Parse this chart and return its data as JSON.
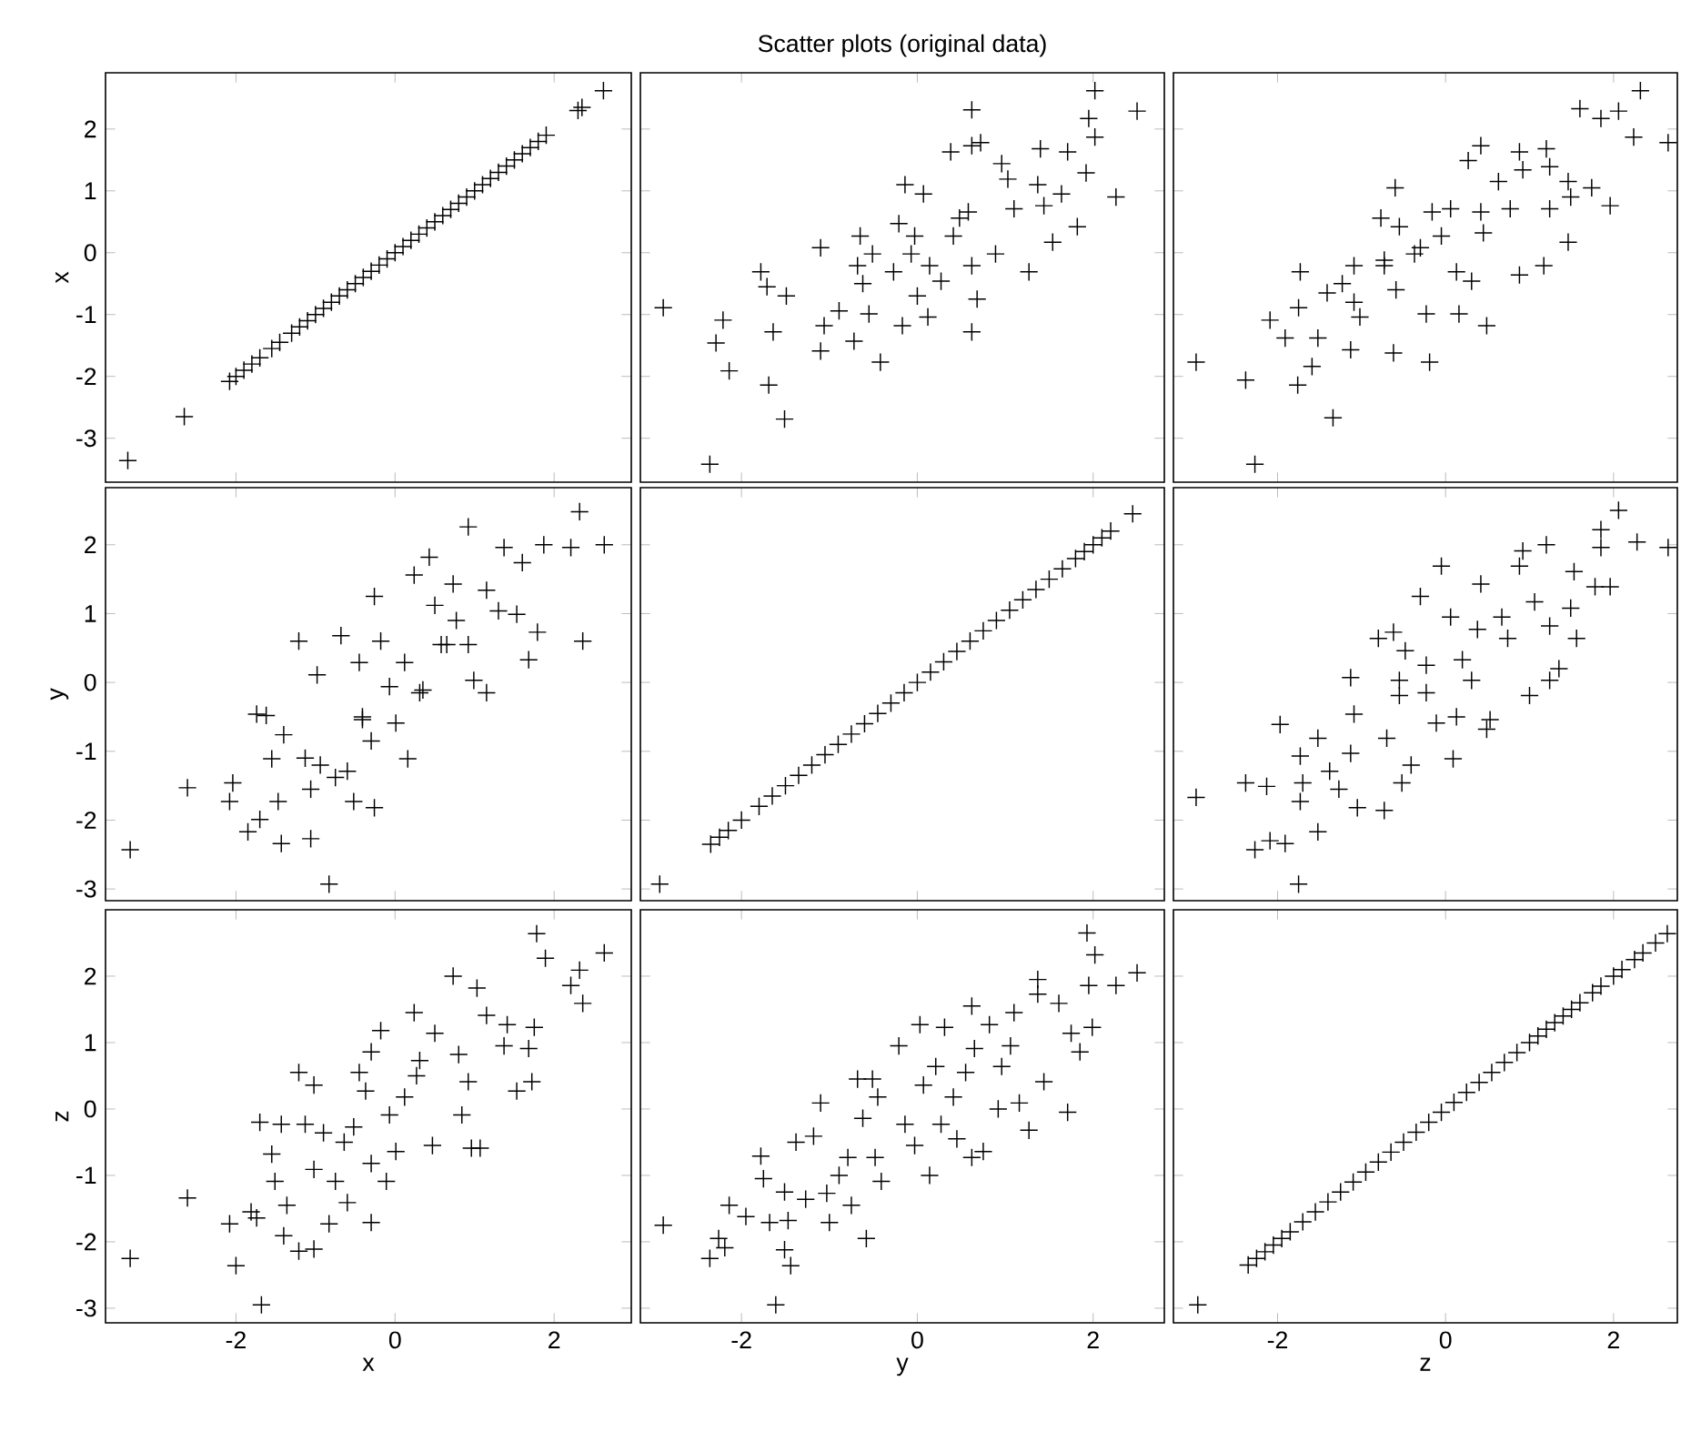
{
  "chart_data": [
    {
      "type": "scatter",
      "marker": "cross",
      "color": "#000000",
      "ylabel": "x",
      "tick_labels": "y",
      "xlim": [
        -3.64,
        2.97
      ],
      "ylim": [
        -3.71,
        2.91
      ],
      "xticks": [
        -2,
        0,
        2
      ],
      "yticks": [
        -3,
        -2,
        -1,
        0,
        1,
        2
      ],
      "x": [
        -3.36,
        -2.65,
        -2.08,
        -2.0,
        -1.9,
        -1.8,
        -1.7,
        -1.55,
        -1.45,
        -1.3,
        -1.2,
        -1.1,
        -1.0,
        -0.9,
        -0.8,
        -0.7,
        -0.6,
        -0.5,
        -0.4,
        -0.3,
        -0.2,
        -0.1,
        0.0,
        0.1,
        0.2,
        0.3,
        0.4,
        0.5,
        0.6,
        0.7,
        0.8,
        0.9,
        1.0,
        1.1,
        1.2,
        1.3,
        1.4,
        1.5,
        1.6,
        1.7,
        1.8,
        1.9,
        2.3,
        2.35,
        2.62
      ],
      "values": [
        -3.36,
        -2.65,
        -2.08,
        -2.0,
        -1.9,
        -1.8,
        -1.7,
        -1.55,
        -1.45,
        -1.3,
        -1.2,
        -1.1,
        -1.0,
        -0.9,
        -0.8,
        -0.7,
        -0.6,
        -0.5,
        -0.4,
        -0.3,
        -0.2,
        -0.1,
        0.0,
        0.1,
        0.2,
        0.3,
        0.4,
        0.5,
        0.6,
        0.7,
        0.8,
        0.9,
        1.0,
        1.1,
        1.2,
        1.3,
        1.4,
        1.5,
        1.6,
        1.7,
        1.8,
        1.9,
        2.3,
        2.35,
        2.62
      ]
    },
    {
      "type": "scatter",
      "marker": "cross",
      "color": "#000000",
      "title": "Scatter plots (original data)",
      "tick_labels": false,
      "xlim": [
        -3.15,
        2.81
      ],
      "ylim": [
        -3.71,
        2.91
      ],
      "xticks": [
        -2,
        0,
        2
      ],
      "yticks": [
        -3,
        -2,
        -1,
        0,
        1,
        2
      ],
      "x": [
        -2.89,
        -2.36,
        -1.51,
        -2.14,
        -1.69,
        -2.29,
        -2.21,
        -1.78,
        -1.71,
        -1.49,
        -1.64,
        -1.1,
        -1.1,
        -0.72,
        -0.42,
        -1.06,
        -0.89,
        -0.65,
        -0.62,
        -0.51,
        -0.55,
        -0.17,
        -0.14,
        -0.21,
        -0.03,
        0.07,
        0.14,
        0.12,
        0.27,
        0.0,
        0.38,
        0.62,
        0.62,
        0.72,
        0.58,
        0.62,
        0.68,
        0.62,
        0.48,
        0.96,
        1.03,
        0.89,
        1.1,
        1.27,
        1.37,
        1.44,
        1.4,
        1.54,
        1.64,
        1.71,
        1.82,
        1.92,
        1.95,
        2.02,
        2.02,
        2.26,
        2.5,
        -0.68,
        -0.27,
        -0.07,
        0.41
      ],
      "values": [
        -0.89,
        -3.42,
        -2.69,
        -1.91,
        -2.14,
        -1.46,
        -1.09,
        -0.31,
        -0.55,
        -0.7,
        -1.28,
        0.08,
        -1.59,
        -1.43,
        -1.77,
        -1.18,
        -0.94,
        0.27,
        -0.5,
        -0.02,
        -0.99,
        -1.18,
        1.1,
        0.47,
        0.27,
        0.95,
        -0.21,
        -1.04,
        -0.46,
        -0.7,
        1.63,
        2.31,
        1.73,
        1.78,
        0.66,
        -0.21,
        -0.75,
        -1.28,
        0.56,
        1.44,
        1.19,
        -0.02,
        0.71,
        -0.31,
        1.1,
        0.76,
        1.68,
        0.17,
        0.95,
        1.63,
        0.42,
        1.29,
        2.17,
        1.87,
        2.62,
        0.9,
        2.29,
        -0.21,
        -0.31,
        -0.02,
        0.27
      ]
    },
    {
      "type": "scatter",
      "marker": "cross",
      "color": "#000000",
      "tick_labels": false,
      "xlim": [
        -3.24,
        2.76
      ],
      "ylim": [
        -3.71,
        2.91
      ],
      "xticks": [
        -2,
        0,
        2
      ],
      "yticks": [
        -3,
        -2,
        -1,
        0,
        1,
        2
      ],
      "x": [
        -2.97,
        -2.38,
        -2.27,
        -2.09,
        -1.91,
        -1.75,
        -1.73,
        -1.76,
        -1.59,
        -1.34,
        -1.52,
        -1.41,
        -1.23,
        -1.13,
        -1.09,
        -1.02,
        -1.09,
        -0.73,
        -0.62,
        -0.6,
        -0.59,
        -0.55,
        -0.3,
        -0.23,
        -0.19,
        -0.16,
        0.06,
        0.13,
        0.16,
        0.27,
        0.42,
        0.42,
        0.45,
        0.49,
        0.31,
        0.63,
        0.77,
        0.88,
        0.92,
        0.88,
        1.17,
        1.2,
        1.24,
        1.24,
        1.46,
        1.46,
        1.49,
        1.74,
        1.96,
        1.6,
        1.85,
        2.06,
        2.24,
        2.32,
        2.65,
        -0.77,
        -0.37,
        -0.05,
        -0.73
      ],
      "values": [
        -1.77,
        -2.06,
        -3.42,
        -1.09,
        -1.38,
        -0.89,
        -0.31,
        -2.14,
        -1.84,
        -2.67,
        -1.38,
        -0.65,
        -0.5,
        -1.57,
        -0.8,
        -1.04,
        -0.21,
        -0.21,
        -1.62,
        1.05,
        -0.6,
        0.42,
        0.08,
        -0.99,
        -1.77,
        0.66,
        0.71,
        -0.31,
        -0.99,
        1.49,
        1.73,
        0.66,
        0.32,
        -1.18,
        -0.46,
        1.15,
        0.71,
        1.63,
        1.34,
        -0.36,
        -0.21,
        1.68,
        0.71,
        1.39,
        1.15,
        0.17,
        0.9,
        1.05,
        0.76,
        2.33,
        2.17,
        2.29,
        1.87,
        2.62,
        1.78,
        0.56,
        -0.02,
        0.27,
        -0.12
      ]
    },
    {
      "type": "scatter",
      "marker": "cross",
      "color": "#000000",
      "ylabel": "y",
      "tick_labels": "y",
      "xlim": [
        -3.64,
        2.97
      ],
      "ylim": [
        -3.17,
        2.83
      ],
      "xticks": [
        -2,
        0,
        2
      ],
      "yticks": [
        -3,
        -2,
        -1,
        0,
        1,
        2
      ],
      "x": [
        -3.33,
        -2.61,
        -2.04,
        -2.08,
        -1.85,
        -1.7,
        -1.43,
        -1.06,
        -0.83,
        -1.47,
        -1.06,
        -1.55,
        -1.74,
        -1.62,
        -1.4,
        -1.21,
        -1.13,
        -0.98,
        -0.94,
        -0.75,
        -0.68,
        -0.6,
        -0.52,
        -0.26,
        -0.45,
        -0.41,
        -0.3,
        -0.26,
        -0.18,
        -0.07,
        0.01,
        0.12,
        0.16,
        0.24,
        0.31,
        0.43,
        0.5,
        0.58,
        0.73,
        0.77,
        0.92,
        0.92,
        0.99,
        1.15,
        1.15,
        1.37,
        1.3,
        1.53,
        1.6,
        1.68,
        1.79,
        1.87,
        2.21,
        2.32,
        2.36,
        2.63,
        -0.41,
        0.35,
        0.65
      ],
      "values": [
        -2.43,
        -1.53,
        -1.46,
        -1.73,
        -2.17,
        -1.99,
        -2.34,
        -2.27,
        -2.93,
        -1.73,
        -1.55,
        -1.11,
        -0.46,
        -0.48,
        -0.76,
        0.6,
        -1.1,
        0.11,
        -1.2,
        -1.38,
        0.68,
        -1.29,
        -1.73,
        -1.82,
        0.29,
        -0.5,
        -0.85,
        1.25,
        0.6,
        -0.06,
        -0.59,
        0.29,
        -1.11,
        1.56,
        -0.15,
        1.82,
        1.12,
        0.55,
        1.43,
        0.9,
        2.26,
        0.55,
        0.03,
        -0.15,
        1.34,
        1.96,
        1.04,
        0.99,
        1.74,
        0.33,
        0.73,
        2.0,
        1.96,
        2.48,
        0.6,
        2.0,
        -0.54,
        -0.11,
        0.55
      ]
    },
    {
      "type": "scatter",
      "marker": "cross",
      "color": "#000000",
      "tick_labels": false,
      "xlim": [
        -3.15,
        2.81
      ],
      "ylim": [
        -3.17,
        2.83
      ],
      "xticks": [
        -2,
        0,
        2
      ],
      "yticks": [
        -3,
        -2,
        -1,
        0,
        1,
        2
      ],
      "x": [
        -2.93,
        -2.35,
        -2.25,
        -2.15,
        -2.0,
        -1.8,
        -1.65,
        -1.5,
        -1.35,
        -1.2,
        -1.05,
        -0.9,
        -0.75,
        -0.6,
        -0.45,
        -0.3,
        -0.15,
        0.0,
        0.15,
        0.3,
        0.45,
        0.6,
        0.75,
        0.9,
        1.05,
        1.2,
        1.35,
        1.5,
        1.65,
        1.8,
        1.9,
        2.0,
        2.1,
        2.2,
        2.45
      ],
      "values": [
        -2.93,
        -2.35,
        -2.25,
        -2.15,
        -2.0,
        -1.8,
        -1.65,
        -1.5,
        -1.35,
        -1.2,
        -1.05,
        -0.9,
        -0.75,
        -0.6,
        -0.45,
        -0.3,
        -0.15,
        0.0,
        0.15,
        0.3,
        0.45,
        0.6,
        0.75,
        0.9,
        1.05,
        1.2,
        1.35,
        1.5,
        1.65,
        1.8,
        1.9,
        2.0,
        2.1,
        2.2,
        2.45
      ]
    },
    {
      "type": "scatter",
      "marker": "cross",
      "color": "#000000",
      "tick_labels": false,
      "xlim": [
        -3.24,
        2.76
      ],
      "ylim": [
        -3.17,
        2.83
      ],
      "xticks": [
        -2,
        0,
        2
      ],
      "yticks": [
        -3,
        -2,
        -1,
        0,
        1,
        2
      ],
      "x": [
        -2.97,
        -2.38,
        -2.27,
        -2.09,
        -1.91,
        -1.75,
        -2.13,
        -1.97,
        -1.73,
        -1.7,
        -1.73,
        -1.52,
        -1.52,
        -1.38,
        -1.27,
        -1.13,
        -1.13,
        -1.09,
        -1.05,
        -0.73,
        -0.8,
        -0.62,
        -0.7,
        -0.55,
        -0.48,
        -0.52,
        -0.41,
        -0.3,
        -0.23,
        -0.23,
        -0.11,
        -0.05,
        0.06,
        0.09,
        0.13,
        0.2,
        0.31,
        0.38,
        0.42,
        0.49,
        0.53,
        0.67,
        0.74,
        0.88,
        0.92,
        1.0,
        1.06,
        1.2,
        1.24,
        1.24,
        1.35,
        1.53,
        1.49,
        1.56,
        1.78,
        1.96,
        1.85,
        1.85,
        2.06,
        2.28,
        2.65,
        -0.55
      ],
      "values": [
        -1.67,
        -1.46,
        -2.43,
        -2.3,
        -2.34,
        -2.93,
        -1.51,
        -0.61,
        -1.07,
        -1.46,
        -1.73,
        -2.17,
        -0.81,
        -1.29,
        -1.55,
        -1.03,
        0.07,
        -0.46,
        -1.82,
        -1.86,
        0.64,
        0.73,
        -0.81,
        0.03,
        0.46,
        -1.46,
        -1.2,
        1.25,
        -0.15,
        0.25,
        -0.59,
        1.69,
        0.95,
        -1.11,
        -0.5,
        0.33,
        0.03,
        0.77,
        1.43,
        -0.68,
        -0.54,
        0.95,
        0.64,
        1.69,
        1.91,
        -0.19,
        1.17,
        2.0,
        0.03,
        0.82,
        0.2,
        1.61,
        1.08,
        0.64,
        1.39,
        1.39,
        2.22,
        1.96,
        2.5,
        2.04,
        1.96,
        -0.19
      ]
    },
    {
      "type": "scatter",
      "marker": "cross",
      "color": "#000000",
      "xlabel": "x",
      "ylabel": "z",
      "xlim": [
        -3.64,
        2.97
      ],
      "ylim": [
        -3.22,
        3.0
      ],
      "xticks": [
        -2,
        0,
        2
      ],
      "yticks": [
        -3,
        -2,
        -1,
        0,
        1,
        2
      ],
      "x": [
        -3.33,
        -2.61,
        -2.0,
        -1.68,
        -2.08,
        -1.81,
        -1.74,
        -1.4,
        -1.21,
        -1.02,
        -0.83,
        -1.51,
        -1.36,
        -1.7,
        -1.55,
        -1.43,
        -1.21,
        -1.02,
        -1.13,
        -1.02,
        -0.9,
        -0.75,
        -0.6,
        -0.3,
        -0.64,
        -0.52,
        -0.45,
        -0.37,
        -0.3,
        -0.18,
        -0.3,
        -0.11,
        -0.07,
        0.01,
        0.12,
        0.24,
        0.27,
        0.31,
        0.47,
        0.5,
        0.73,
        0.8,
        0.84,
        0.92,
        0.96,
        1.03,
        1.07,
        1.15,
        1.37,
        1.41,
        1.53,
        1.68,
        1.72,
        1.75,
        1.78,
        1.89,
        2.21,
        2.32,
        2.36,
        2.63
      ],
      "values": [
        -2.25,
        -1.34,
        -2.36,
        -2.95,
        -1.73,
        -1.55,
        -1.64,
        -1.91,
        -2.14,
        -2.11,
        -1.73,
        -1.09,
        -1.45,
        -0.2,
        -0.68,
        -0.23,
        0.55,
        0.36,
        -0.23,
        -0.91,
        -0.36,
        -1.09,
        -1.41,
        -1.71,
        -0.5,
        -0.27,
        0.55,
        0.27,
        0.86,
        1.18,
        -0.82,
        -1.09,
        -0.09,
        -0.64,
        0.18,
        1.45,
        0.5,
        0.73,
        -0.55,
        1.14,
        2.0,
        0.82,
        -0.09,
        0.41,
        -0.59,
        1.82,
        -0.59,
        1.41,
        0.95,
        1.27,
        0.27,
        0.91,
        0.41,
        1.23,
        2.64,
        2.27,
        1.86,
        2.09,
        1.59,
        2.35
      ]
    },
    {
      "type": "scatter",
      "marker": "cross",
      "color": "#000000",
      "xlabel": "y",
      "tick_labels": "x",
      "xlim": [
        -3.15,
        2.81
      ],
      "ylim": [
        -3.22,
        3.0
      ],
      "xticks": [
        -2,
        0,
        2
      ],
      "yticks": [
        -3,
        -2,
        -1,
        0,
        1,
        2
      ],
      "x": [
        -2.89,
        -2.36,
        -2.26,
        -2.19,
        -2.14,
        -1.95,
        -1.78,
        -1.75,
        -1.68,
        -1.61,
        -1.51,
        -1.44,
        -1.47,
        -1.51,
        -1.38,
        -1.27,
        -1.18,
        -1.1,
        -1.03,
        -1.0,
        -0.89,
        -0.79,
        -0.75,
        -0.58,
        -0.68,
        -0.62,
        -0.51,
        -0.45,
        -0.48,
        -0.41,
        -0.21,
        -0.14,
        -0.03,
        0.03,
        0.07,
        0.14,
        0.21,
        0.27,
        0.31,
        0.41,
        0.45,
        0.55,
        0.62,
        0.62,
        0.65,
        0.75,
        0.82,
        0.92,
        0.96,
        1.06,
        1.1,
        1.16,
        1.27,
        1.37,
        1.37,
        1.44,
        1.61,
        1.71,
        1.75,
        1.85,
        1.95,
        1.99,
        1.93,
        2.02,
        2.26,
        2.5
      ],
      "values": [
        -1.75,
        -2.25,
        -1.95,
        -2.09,
        -1.45,
        -1.62,
        -0.71,
        -1.05,
        -1.71,
        -2.95,
        -2.12,
        -2.36,
        -1.68,
        -1.25,
        -0.5,
        -1.36,
        -0.41,
        0.09,
        -1.27,
        -1.71,
        -1.0,
        -0.73,
        -1.45,
        -1.95,
        0.45,
        -0.14,
        0.45,
        0.18,
        -0.73,
        -1.09,
        0.95,
        -0.23,
        -0.55,
        1.27,
        0.36,
        -1.0,
        0.64,
        -0.23,
        1.23,
        0.18,
        -0.45,
        0.55,
        1.55,
        -0.73,
        0.91,
        -0.64,
        1.27,
        0.0,
        0.64,
        0.95,
        1.45,
        0.09,
        -0.32,
        1.95,
        1.73,
        0.41,
        1.59,
        -0.05,
        1.14,
        0.86,
        1.86,
        1.23,
        2.65,
        2.32,
        1.86,
        2.05
      ]
    },
    {
      "type": "scatter",
      "marker": "cross",
      "color": "#000000",
      "xlabel": "z",
      "tick_labels": "x",
      "xlim": [
        -3.24,
        2.76
      ],
      "ylim": [
        -3.22,
        3.0
      ],
      "xticks": [
        -2,
        0,
        2
      ],
      "yticks": [
        -3,
        -2,
        -1,
        0,
        1,
        2
      ],
      "x": [
        -2.95,
        -2.35,
        -2.25,
        -2.15,
        -2.05,
        -1.95,
        -1.85,
        -1.7,
        -1.55,
        -1.4,
        -1.25,
        -1.1,
        -0.95,
        -0.8,
        -0.65,
        -0.5,
        -0.35,
        -0.2,
        -0.05,
        0.1,
        0.25,
        0.4,
        0.55,
        0.7,
        0.85,
        1.0,
        1.1,
        1.2,
        1.3,
        1.4,
        1.5,
        1.6,
        1.75,
        1.85,
        2.0,
        2.1,
        2.25,
        2.35,
        2.5,
        2.64
      ],
      "values": [
        -2.95,
        -2.35,
        -2.25,
        -2.15,
        -2.05,
        -1.95,
        -1.85,
        -1.7,
        -1.55,
        -1.4,
        -1.25,
        -1.1,
        -0.95,
        -0.8,
        -0.65,
        -0.5,
        -0.35,
        -0.2,
        -0.05,
        0.1,
        0.25,
        0.4,
        0.55,
        0.7,
        0.85,
        1.0,
        1.1,
        1.2,
        1.3,
        1.4,
        1.5,
        1.6,
        1.75,
        1.85,
        2.0,
        2.1,
        2.25,
        2.35,
        2.5,
        2.64
      ]
    }
  ]
}
